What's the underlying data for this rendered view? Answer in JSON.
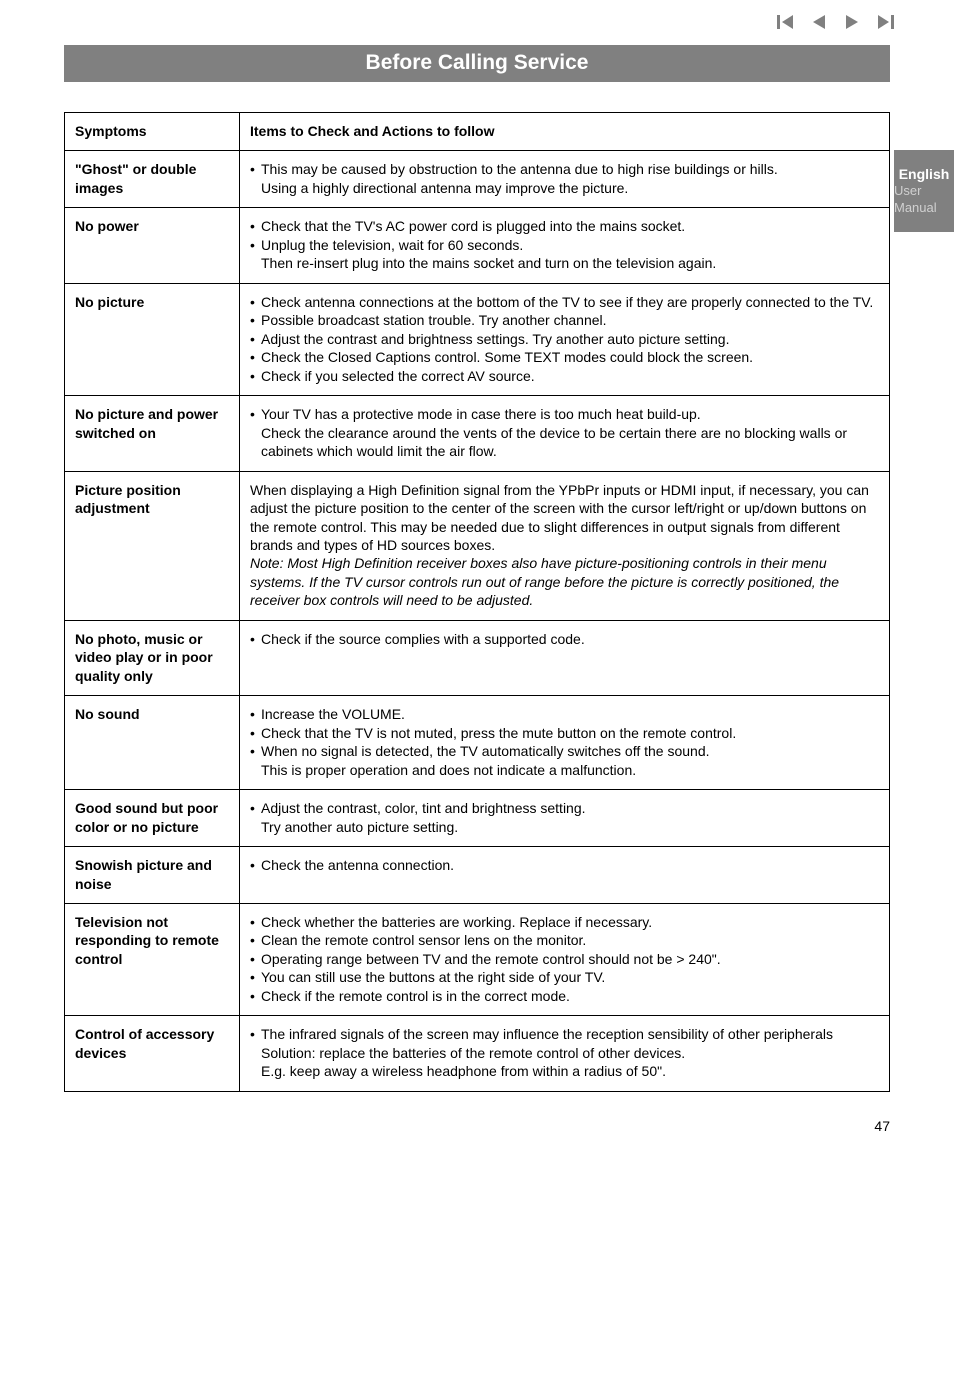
{
  "nav": {
    "icons": [
      {
        "name": "skip-back-icon",
        "glyph": "skip-back",
        "color": "#808080"
      },
      {
        "name": "prev-icon",
        "glyph": "prev",
        "color": "#808080"
      },
      {
        "name": "next-icon",
        "glyph": "next",
        "color": "#808080"
      },
      {
        "name": "skip-forward-icon",
        "glyph": "skip-forward",
        "color": "#808080"
      }
    ]
  },
  "header": {
    "title": "Before Calling Service"
  },
  "sideTab": {
    "lang": "English",
    "sub": "User Manual"
  },
  "table": {
    "columns": [
      "Symptoms",
      "Items to Check and Actions to follow"
    ],
    "colWidths": [
      "175px",
      "auto"
    ],
    "rows": [
      {
        "symptom": "\"Ghost\" or double images",
        "bullets": [
          {
            "text": "This may be caused by obstruction to the antenna due to high rise buildings or hills.",
            "subs": [
              "Using a highly directional antenna may improve the picture."
            ]
          }
        ]
      },
      {
        "symptom": "No power",
        "bullets": [
          {
            "text": "Check that the TV's AC power cord is plugged into the mains socket."
          },
          {
            "text": "Unplug the television, wait for 60 seconds.",
            "subs": [
              "Then re-insert plug into the mains socket and turn on the television again."
            ]
          }
        ]
      },
      {
        "symptom": "No picture",
        "bullets": [
          {
            "text": "Check antenna connections at the bottom of the TV to see if they are properly connected to the TV."
          },
          {
            "text": "Possible broadcast station trouble. Try another channel."
          },
          {
            "text": "Adjust the contrast and brightness settings. Try another auto picture setting."
          },
          {
            "text": "Check the Closed Captions control. Some TEXT modes could block the screen."
          },
          {
            "text": "Check if you selected the correct AV source."
          }
        ]
      },
      {
        "symptom": "No picture and power switched on",
        "bullets": [
          {
            "text": "Your TV has a protective mode in case there is too much heat build-up.",
            "subs": [
              "Check the clearance around the vents of the device to be certain there are no blocking walls or cabinets which would limit the air flow."
            ]
          }
        ]
      },
      {
        "symptom": "Picture position adjustment",
        "plain": "When displaying a High Definition signal from the YPbPr inputs or HDMI input, if necessary, you can adjust the picture position to the center of the screen with the cursor left/right or up/down buttons on the remote control. This may be needed due to slight differences in output signals from different brands and types of HD sources boxes.",
        "note_italic": "Note: Most High Definition receiver boxes also have picture-positioning controls in their menu systems. If the TV cursor controls run out of range before the picture is correctly positioned, the receiver box controls will need to be adjusted."
      },
      {
        "symptom": "No photo, music or video play or in poor quality only",
        "bullets": [
          {
            "text": "Check if the source complies with a supported code."
          }
        ]
      },
      {
        "symptom": "No sound",
        "bullets": [
          {
            "text": "Increase the VOLUME."
          },
          {
            "text": "Check that the TV is not muted, press the mute button on the remote control."
          },
          {
            "text": "When no signal is detected, the TV automatically switches off the sound.",
            "subs": [
              "This is proper operation and does not indicate a malfunction."
            ]
          }
        ]
      },
      {
        "symptom": "Good sound but poor color or no picture",
        "bullets": [
          {
            "text": "Adjust the contrast, color, tint and brightness setting.",
            "subs": [
              "Try another auto picture setting."
            ]
          }
        ]
      },
      {
        "symptom": "Snowish picture and noise",
        "bullets": [
          {
            "text": "Check the antenna connection."
          }
        ]
      },
      {
        "symptom": "Television not responding to remote control",
        "bullets": [
          {
            "text": "Check whether the batteries are working. Replace if necessary."
          },
          {
            "text": "Clean the remote control sensor lens on the monitor."
          },
          {
            "text": "Operating range between TV and the remote control should not be > 240\"."
          },
          {
            "text": "You can still use the buttons at the right side of your TV."
          },
          {
            "text": "Check if the remote control is in the correct mode."
          }
        ]
      },
      {
        "symptom": "Control of accessory devices",
        "bullets": [
          {
            "text": "The infrared signals of the screen may influence the reception sensibility of other peripherals",
            "subs": [
              "Solution: replace the batteries of the remote control of other devices.",
              "E.g. keep away a wireless headphone from within a radius of 50\"."
            ]
          }
        ]
      }
    ]
  },
  "pageNumber": "47"
}
